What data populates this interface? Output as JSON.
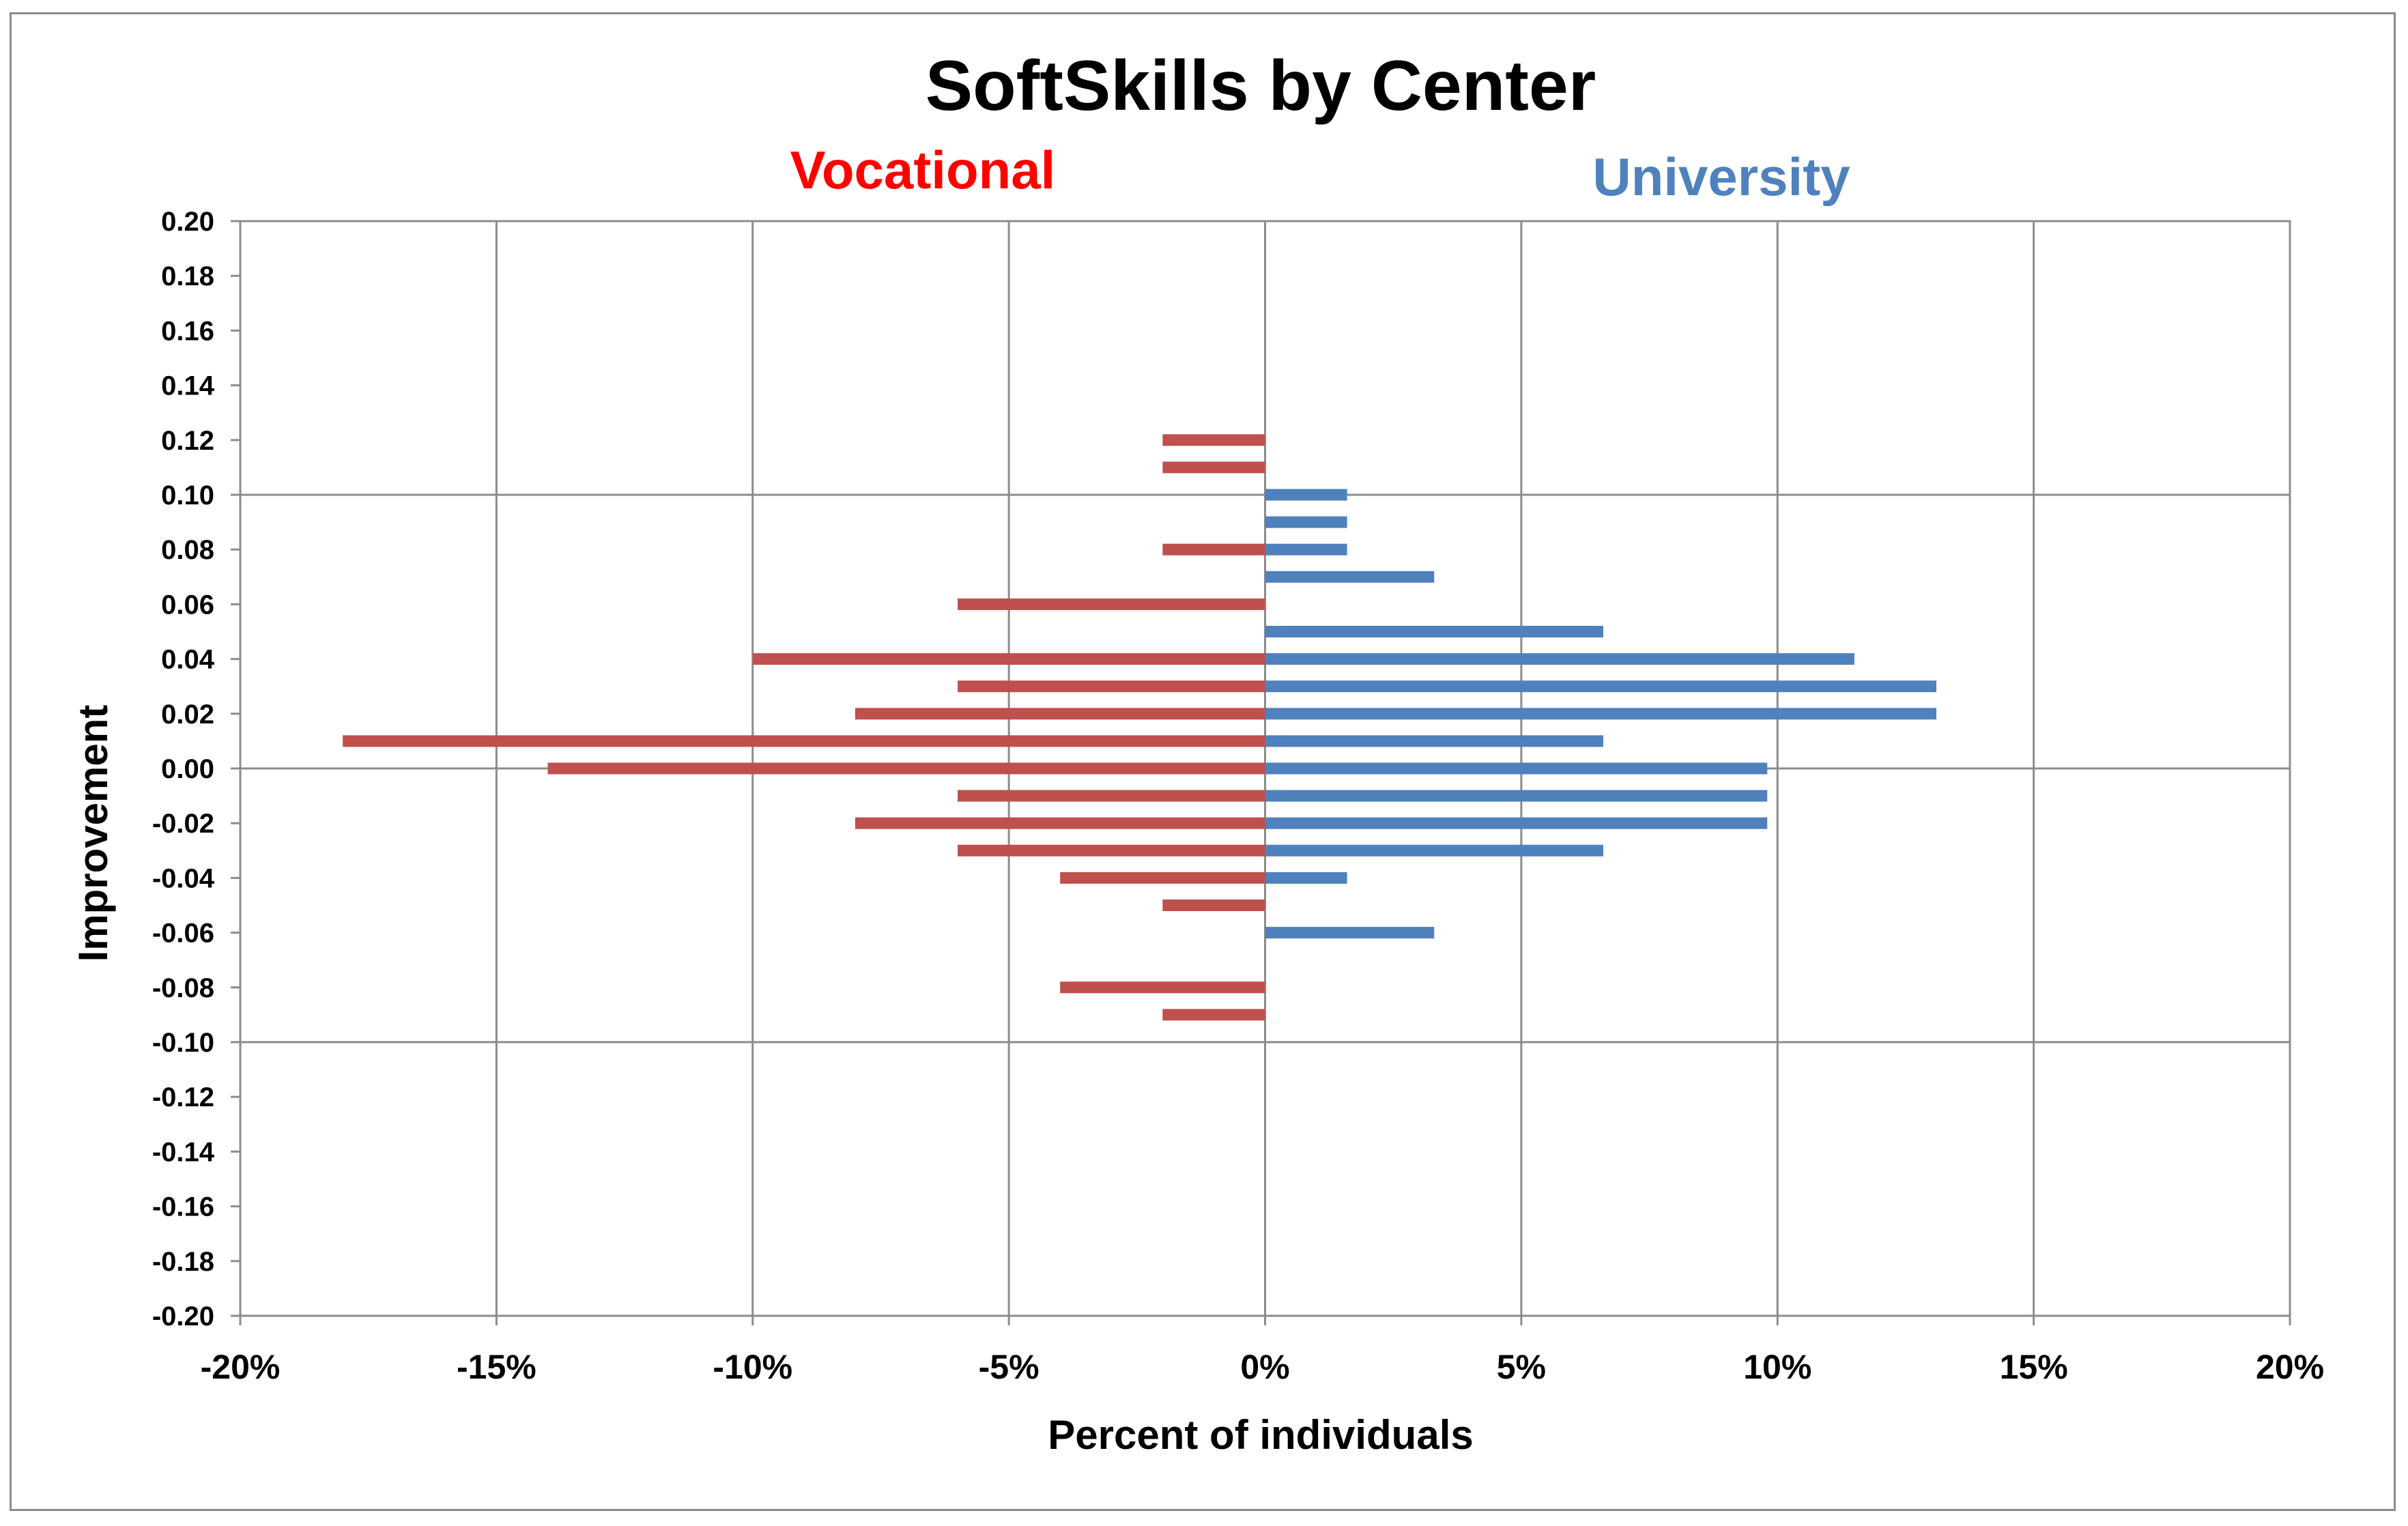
{
  "chart_data": {
    "type": "bar",
    "orientation": "horizontal",
    "title": "SoftSkills by Center",
    "xlabel": "Percent of individuals",
    "ylabel": "Improvement",
    "xlim": [
      -20,
      20
    ],
    "ylim": [
      -0.2,
      0.2
    ],
    "x_ticks": [
      -20,
      -15,
      -10,
      -5,
      0,
      5,
      10,
      15,
      20
    ],
    "x_tick_labels": [
      "-20%",
      "-15%",
      "-10%",
      "-5%",
      "0%",
      "5%",
      "10%",
      "15%",
      "20%"
    ],
    "y_ticks": [
      0.2,
      0.18,
      0.16,
      0.14,
      0.12,
      0.1,
      0.08,
      0.06,
      0.04,
      0.02,
      0.0,
      -0.02,
      -0.04,
      -0.06,
      -0.08,
      -0.1,
      -0.12,
      -0.14,
      -0.16,
      -0.18,
      -0.2
    ],
    "y_tick_labels": [
      "0.20",
      "0.18",
      "0.16",
      "0.14",
      "0.12",
      "0.10",
      "0.08",
      "0.06",
      "0.04",
      "0.02",
      "0.00",
      "-0.02",
      "-0.04",
      "-0.06",
      "-0.08",
      "-0.10",
      "-0.12",
      "-0.14",
      "-0.16",
      "-0.18",
      "-0.20"
    ],
    "major_grid_y": [
      0.1,
      0.0,
      -0.1
    ],
    "grid": true,
    "series": [
      {
        "name": "Vocational",
        "color": "#c0504d",
        "label_color": "#ff0000",
        "points": [
          {
            "y": 0.12,
            "x": -2
          },
          {
            "y": 0.11,
            "x": -2
          },
          {
            "y": 0.08,
            "x": -2
          },
          {
            "y": 0.06,
            "x": -6
          },
          {
            "y": 0.04,
            "x": -10
          },
          {
            "y": 0.03,
            "x": -6
          },
          {
            "y": 0.02,
            "x": -8
          },
          {
            "y": 0.01,
            "x": -18
          },
          {
            "y": 0.0,
            "x": -14
          },
          {
            "y": -0.01,
            "x": -6
          },
          {
            "y": -0.02,
            "x": -8
          },
          {
            "y": -0.03,
            "x": -6
          },
          {
            "y": -0.04,
            "x": -4
          },
          {
            "y": -0.05,
            "x": -2
          },
          {
            "y": -0.08,
            "x": -4
          },
          {
            "y": -0.09,
            "x": -2
          }
        ]
      },
      {
        "name": "University",
        "color": "#4f81bd",
        "label_color": "#4f81bd",
        "points": [
          {
            "y": 0.1,
            "x": 1.6
          },
          {
            "y": 0.09,
            "x": 1.6
          },
          {
            "y": 0.08,
            "x": 1.6
          },
          {
            "y": 0.07,
            "x": 3.3
          },
          {
            "y": 0.05,
            "x": 6.6
          },
          {
            "y": 0.04,
            "x": 11.5
          },
          {
            "y": 0.03,
            "x": 13.1
          },
          {
            "y": 0.02,
            "x": 13.1
          },
          {
            "y": 0.01,
            "x": 6.6
          },
          {
            "y": 0.0,
            "x": 9.8
          },
          {
            "y": -0.01,
            "x": 9.8
          },
          {
            "y": -0.02,
            "x": 9.8
          },
          {
            "y": -0.03,
            "x": 6.6
          },
          {
            "y": -0.04,
            "x": 1.6
          },
          {
            "y": -0.06,
            "x": 3.3
          }
        ]
      }
    ]
  }
}
